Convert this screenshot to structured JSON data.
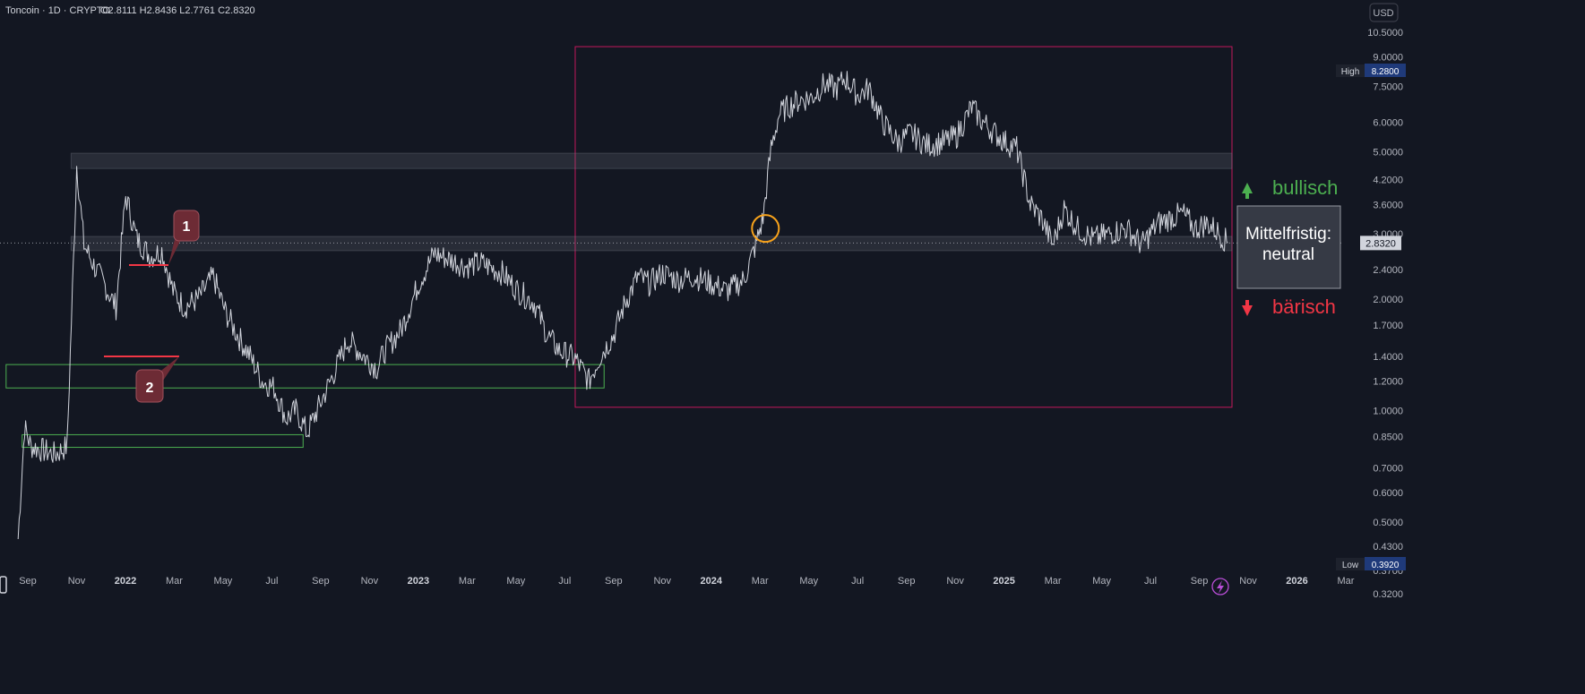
{
  "header": {
    "legend": "Toncoin · 1D · CRYPTO",
    "ohlc": "O2.8111  H2.8436  L2.7761  C2.8320"
  },
  "currency_button": "USD",
  "price_axis": {
    "ticks": [
      "10.5000",
      "9.0000",
      "7.5000",
      "6.0000",
      "5.0000",
      "4.2000",
      "3.6000",
      "3.0000",
      "2.4000",
      "2.0000",
      "1.7000",
      "1.4000",
      "1.2000",
      "1.0000",
      "0.8500",
      "0.7000",
      "0.6000",
      "0.5000",
      "0.4300",
      "0.3700",
      "0.3200"
    ],
    "high_label": "High",
    "high_value": "8.2800",
    "low_label": "Low",
    "low_value": "0.3920",
    "last_price": "2.8320"
  },
  "time_axis": {
    "ticks": [
      "Sep",
      "Nov",
      "2022",
      "Mar",
      "May",
      "Jul",
      "Sep",
      "Nov",
      "2023",
      "Mar",
      "May",
      "Jul",
      "Sep",
      "Nov",
      "2024",
      "Mar",
      "May",
      "Jul",
      "Sep",
      "Nov",
      "2025",
      "Mar",
      "May",
      "Jul",
      "Sep",
      "Nov",
      "2026",
      "Mar"
    ],
    "bold_ticks": [
      "2022",
      "2023",
      "2024",
      "2025",
      "2026"
    ]
  },
  "annotations": {
    "marker_1": "1",
    "marker_2": "2",
    "bullish_label": "bullisch",
    "bearish_label": "bärisch",
    "outlook_line1": "Mittelfristig:",
    "outlook_line2": "neutral"
  },
  "colors": {
    "background": "#131722",
    "price_line": "#d1d4dc",
    "range_box": "#c2185b",
    "support_box": "#4caf50",
    "bullish": "#4caf50",
    "bearish": "#f23645",
    "marker_bg": "#6d2b35",
    "highlight_circle": "#f7a21b"
  },
  "chart_data": {
    "type": "line",
    "title": "Toncoin · 1D · CRYPTO",
    "x_range": [
      "2021-08",
      "2026-03"
    ],
    "y_scale": "log",
    "ylim": [
      0.32,
      10.5
    ],
    "series": [
      {
        "name": "Toncoin",
        "x": [
          "2021-08-20",
          "2021-08-28",
          "2021-09-05",
          "2021-09-20",
          "2021-10-05",
          "2021-10-20",
          "2021-11-01",
          "2021-11-10",
          "2021-11-25",
          "2021-12-05",
          "2021-12-20",
          "2022-01-01",
          "2022-01-15",
          "2022-02-01",
          "2022-02-15",
          "2022-03-01",
          "2022-03-15",
          "2022-04-01",
          "2022-04-20",
          "2022-05-05",
          "2022-05-20",
          "2022-06-05",
          "2022-06-20",
          "2022-07-05",
          "2022-07-20",
          "2022-08-01",
          "2022-08-15",
          "2022-09-01",
          "2022-09-20",
          "2022-10-05",
          "2022-10-25",
          "2022-11-10",
          "2022-11-20",
          "2022-12-10",
          "2023-01-01",
          "2023-01-20",
          "2023-02-10",
          "2023-03-01",
          "2023-03-20",
          "2023-04-15",
          "2023-05-05",
          "2023-05-25",
          "2023-06-10",
          "2023-06-25",
          "2023-07-15",
          "2023-08-01",
          "2023-08-15",
          "2023-09-01",
          "2023-09-15",
          "2023-10-01",
          "2023-10-15",
          "2023-11-01",
          "2023-11-20",
          "2023-12-10",
          "2024-01-01",
          "2024-01-20",
          "2024-02-10",
          "2024-02-25",
          "2024-03-05",
          "2024-03-15",
          "2024-03-25",
          "2024-04-05",
          "2024-04-20",
          "2024-05-05",
          "2024-05-20",
          "2024-06-05",
          "2024-06-15",
          "2024-07-01",
          "2024-07-15",
          "2024-08-01",
          "2024-08-20",
          "2024-09-05",
          "2024-09-25",
          "2024-10-15",
          "2024-11-01",
          "2024-11-20",
          "2024-12-01",
          "2024-12-15",
          "2025-01-01",
          "2025-01-15",
          "2025-02-01",
          "2025-02-15",
          "2025-03-01",
          "2025-03-15",
          "2025-04-01",
          "2025-04-20",
          "2025-05-10",
          "2025-06-01",
          "2025-06-20",
          "2025-07-10",
          "2025-07-25",
          "2025-08-10",
          "2025-08-25",
          "2025-09-10",
          "2025-09-25",
          "2025-10-05"
        ],
        "values": [
          0.45,
          0.9,
          0.8,
          0.78,
          0.76,
          0.8,
          4.6,
          2.8,
          2.4,
          2.2,
          1.9,
          3.8,
          2.9,
          2.6,
          2.7,
          2.1,
          1.9,
          2.0,
          2.3,
          1.85,
          1.6,
          1.4,
          1.2,
          1.15,
          0.95,
          1.0,
          0.87,
          1.05,
          1.3,
          1.55,
          1.4,
          1.3,
          1.45,
          1.65,
          2.2,
          2.65,
          2.55,
          2.45,
          2.5,
          2.35,
          2.1,
          1.95,
          1.6,
          1.45,
          1.38,
          1.2,
          1.4,
          1.6,
          1.95,
          2.3,
          2.2,
          2.35,
          2.25,
          2.3,
          2.2,
          2.1,
          2.25,
          2.8,
          3.3,
          5.1,
          6.3,
          6.6,
          6.9,
          7.0,
          7.6,
          7.4,
          7.9,
          7.1,
          7.4,
          6.0,
          5.3,
          5.6,
          5.2,
          5.3,
          5.5,
          6.6,
          6.1,
          5.7,
          5.3,
          5.1,
          3.6,
          3.3,
          2.8,
          3.5,
          3.1,
          2.9,
          3.0,
          3.1,
          2.8,
          3.2,
          3.3,
          3.4,
          3.1,
          3.2,
          3.0,
          2.83
        ]
      }
    ],
    "high": 8.28,
    "low": 0.392,
    "last": 2.832,
    "zones": [
      {
        "kind": "range_box",
        "from": "2023-07-15",
        "to": "2025-10-15",
        "low": 1.02,
        "high": 9.6
      },
      {
        "kind": "resistance_band",
        "from": "2021-10-25",
        "to": "2025-10-15",
        "low": 4.5,
        "high": 4.95
      },
      {
        "kind": "support_band",
        "from": "2021-10-25",
        "to": "2025-10-15",
        "low": 2.7,
        "high": 2.95
      },
      {
        "kind": "support_box",
        "from": "2021-08-05",
        "to": "2023-08-20",
        "low": 1.15,
        "high": 1.33
      },
      {
        "kind": "support_box",
        "from": "2021-08-25",
        "to": "2022-08-10",
        "low": 0.795,
        "high": 0.86
      }
    ]
  }
}
